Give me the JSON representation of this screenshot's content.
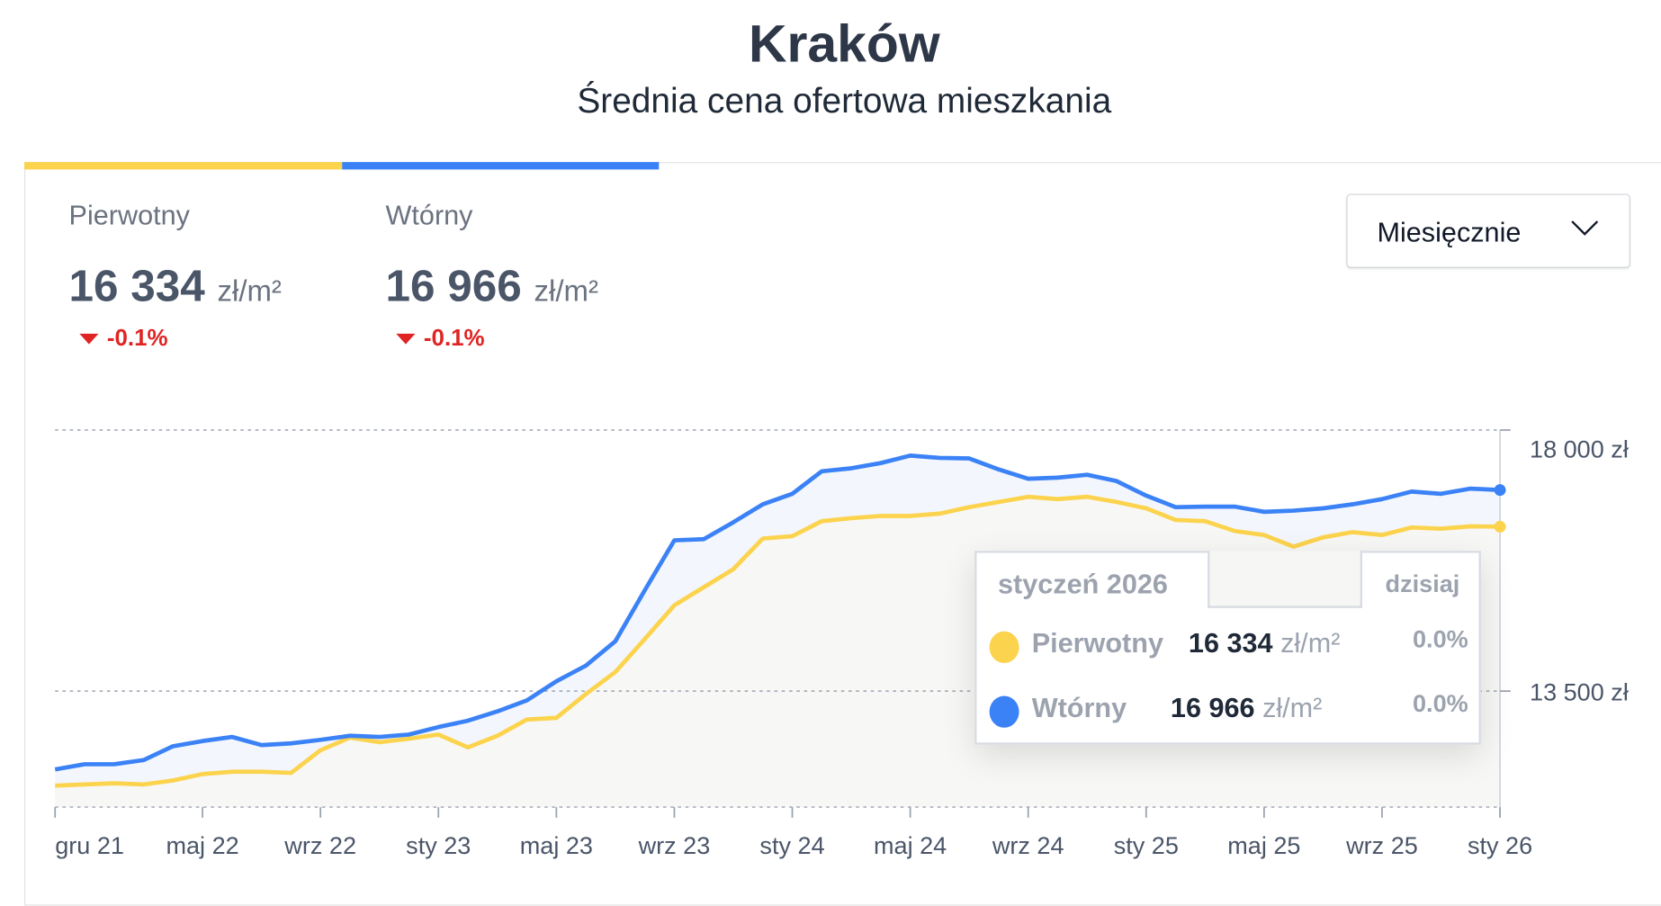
{
  "header": {
    "title": "Kraków",
    "subtitle": "Średnia cena ofertowa mieszkania"
  },
  "colors": {
    "pierwotny": "#fcd34d",
    "wtorny": "#3b82f6",
    "negative": "#e02424"
  },
  "stats": [
    {
      "label": "Pierwotny",
      "value": "16 334",
      "unit": "zł/m²",
      "change": "-0.1%",
      "direction": "down"
    },
    {
      "label": "Wtórny",
      "value": "16 966",
      "unit": "zł/m²",
      "change": "-0.1%",
      "direction": "down"
    }
  ],
  "dropdown": {
    "selected": "Miesięcznie",
    "icon": "chevron-down-icon"
  },
  "tooltip": {
    "date": "styczeń 2026",
    "today": "dzisiaj",
    "rows": [
      {
        "name": "Pierwotny",
        "value": "16 334",
        "unit": "zł/m²",
        "change": "0.0%"
      },
      {
        "name": "Wtórny",
        "value": "16 966",
        "unit": "zł/m²",
        "change": "0.0%"
      }
    ]
  },
  "chart_data": {
    "type": "area",
    "x_start": "2021-12",
    "frequency": "monthly",
    "x_tick_labels": [
      "gru 21",
      "maj 22",
      "wrz 22",
      "sty 23",
      "maj 23",
      "wrz 23",
      "sty 24",
      "maj 24",
      "wrz 24",
      "sty 25",
      "maj 25",
      "wrz 25",
      "sty 26"
    ],
    "x_tick_index": [
      0,
      5,
      9,
      13,
      17,
      21,
      25,
      29,
      33,
      37,
      41,
      45,
      49
    ],
    "y_tick_labels": [
      "18 000 zł",
      "13 500 zł"
    ],
    "y_ticks": [
      18000,
      13500
    ],
    "ylim": [
      11500,
      18000
    ],
    "grid": true,
    "y_axis_side": "right",
    "series": [
      {
        "name": "Pierwotny",
        "color": "#fcd34d",
        "values": [
          11870,
          11890,
          11910,
          11890,
          11960,
          12070,
          12110,
          12110,
          12090,
          12480,
          12700,
          12620,
          12680,
          12750,
          12530,
          12730,
          13010,
          13040,
          13450,
          13830,
          14400,
          14980,
          15290,
          15600,
          16130,
          16170,
          16430,
          16480,
          16520,
          16520,
          16560,
          16670,
          16760,
          16850,
          16810,
          16850,
          16760,
          16650,
          16450,
          16430,
          16260,
          16190,
          15990,
          16150,
          16240,
          16190,
          16320,
          16300,
          16340,
          16334
        ]
      },
      {
        "name": "Wtórny",
        "color": "#3b82f6",
        "values": [
          12150,
          12240,
          12240,
          12310,
          12550,
          12640,
          12710,
          12570,
          12600,
          12660,
          12730,
          12710,
          12750,
          12880,
          12990,
          13150,
          13340,
          13670,
          13940,
          14360,
          15240,
          16100,
          16120,
          16410,
          16720,
          16900,
          17290,
          17340,
          17430,
          17560,
          17520,
          17510,
          17320,
          17160,
          17180,
          17230,
          17120,
          16870,
          16670,
          16680,
          16680,
          16590,
          16610,
          16650,
          16720,
          16810,
          16940,
          16900,
          16990,
          16966
        ]
      }
    ]
  }
}
